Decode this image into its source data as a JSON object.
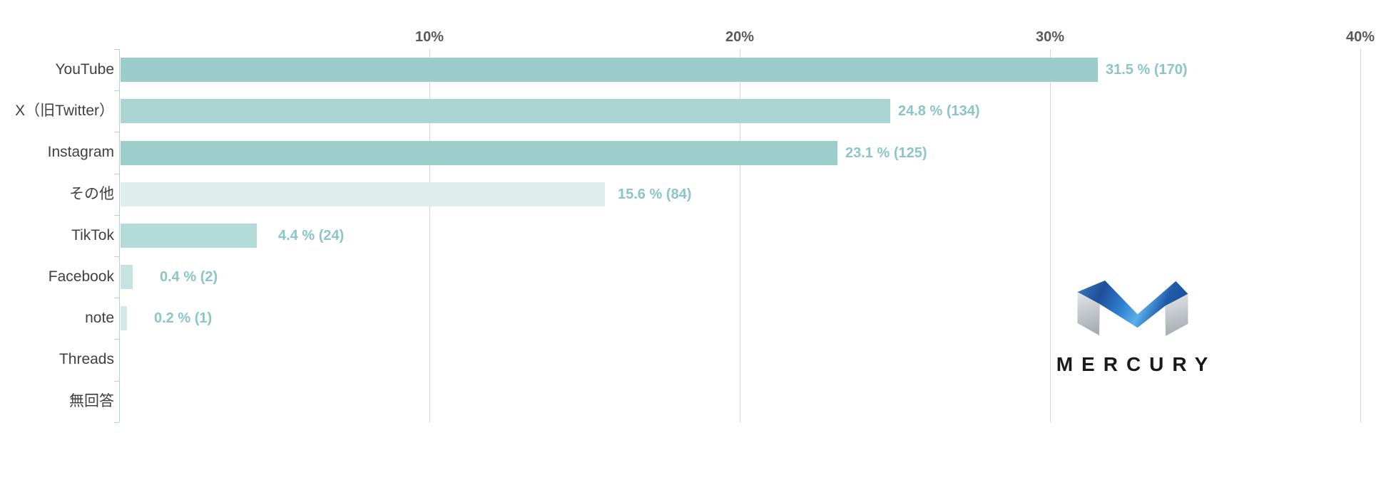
{
  "chart_data": {
    "type": "bar",
    "orientation": "horizontal",
    "title": "",
    "xlabel": "",
    "ylabel": "",
    "xlim": [
      0,
      40
    ],
    "grid": true,
    "x_ticks": [
      {
        "value": 10,
        "label": "10%"
      },
      {
        "value": 20,
        "label": "20%"
      },
      {
        "value": 30,
        "label": "30%"
      },
      {
        "value": 40,
        "label": "40%"
      }
    ],
    "categories": [
      "YouTube",
      "X（旧Twitter）",
      "Instagram",
      "その他",
      "TikTok",
      "Facebook",
      "note",
      "Threads",
      "無回答"
    ],
    "values": [
      31.5,
      24.8,
      23.1,
      15.6,
      4.4,
      0.4,
      0.2,
      0,
      0
    ],
    "counts": [
      170,
      134,
      125,
      84,
      24,
      2,
      1,
      0,
      0
    ],
    "value_labels": [
      "31.5 % (170)",
      "24.8 % (134)",
      "23.1 % (125)",
      "15.6 % (84)",
      "4.4 % (24)",
      "0.4 % (2)",
      "0.2 % (1)",
      "",
      ""
    ],
    "bar_colors": [
      "#9bcdca",
      "#abd5d2",
      "#9ccecc",
      "#dfeeed",
      "#b3dbd8",
      "#c7e3e1",
      "#d3e9e7",
      null,
      null
    ]
  },
  "styles": {
    "grid_color": "#d6d6d6",
    "axis_color": "#b3cfdb",
    "tick_label_color": "#595959",
    "category_label_color": "#404040",
    "value_label_color": "#8ac5c7",
    "background": "#ffffff"
  },
  "logo": {
    "text": "MERCURY",
    "mark_name": "mercury-m-mark",
    "colors": {
      "blue_edge": "#3a74b8",
      "blue_deep": "#1e4f9a",
      "blue_mid": "#2f7fd0",
      "blue_bright": "#59b0ea",
      "blue_shade": "#1f5aa8",
      "blue_end": "#1d4f9c",
      "silver_light": "#e3e5e7",
      "silver_dark": "#a7adb3",
      "text_color": "#1a1a1a"
    }
  }
}
